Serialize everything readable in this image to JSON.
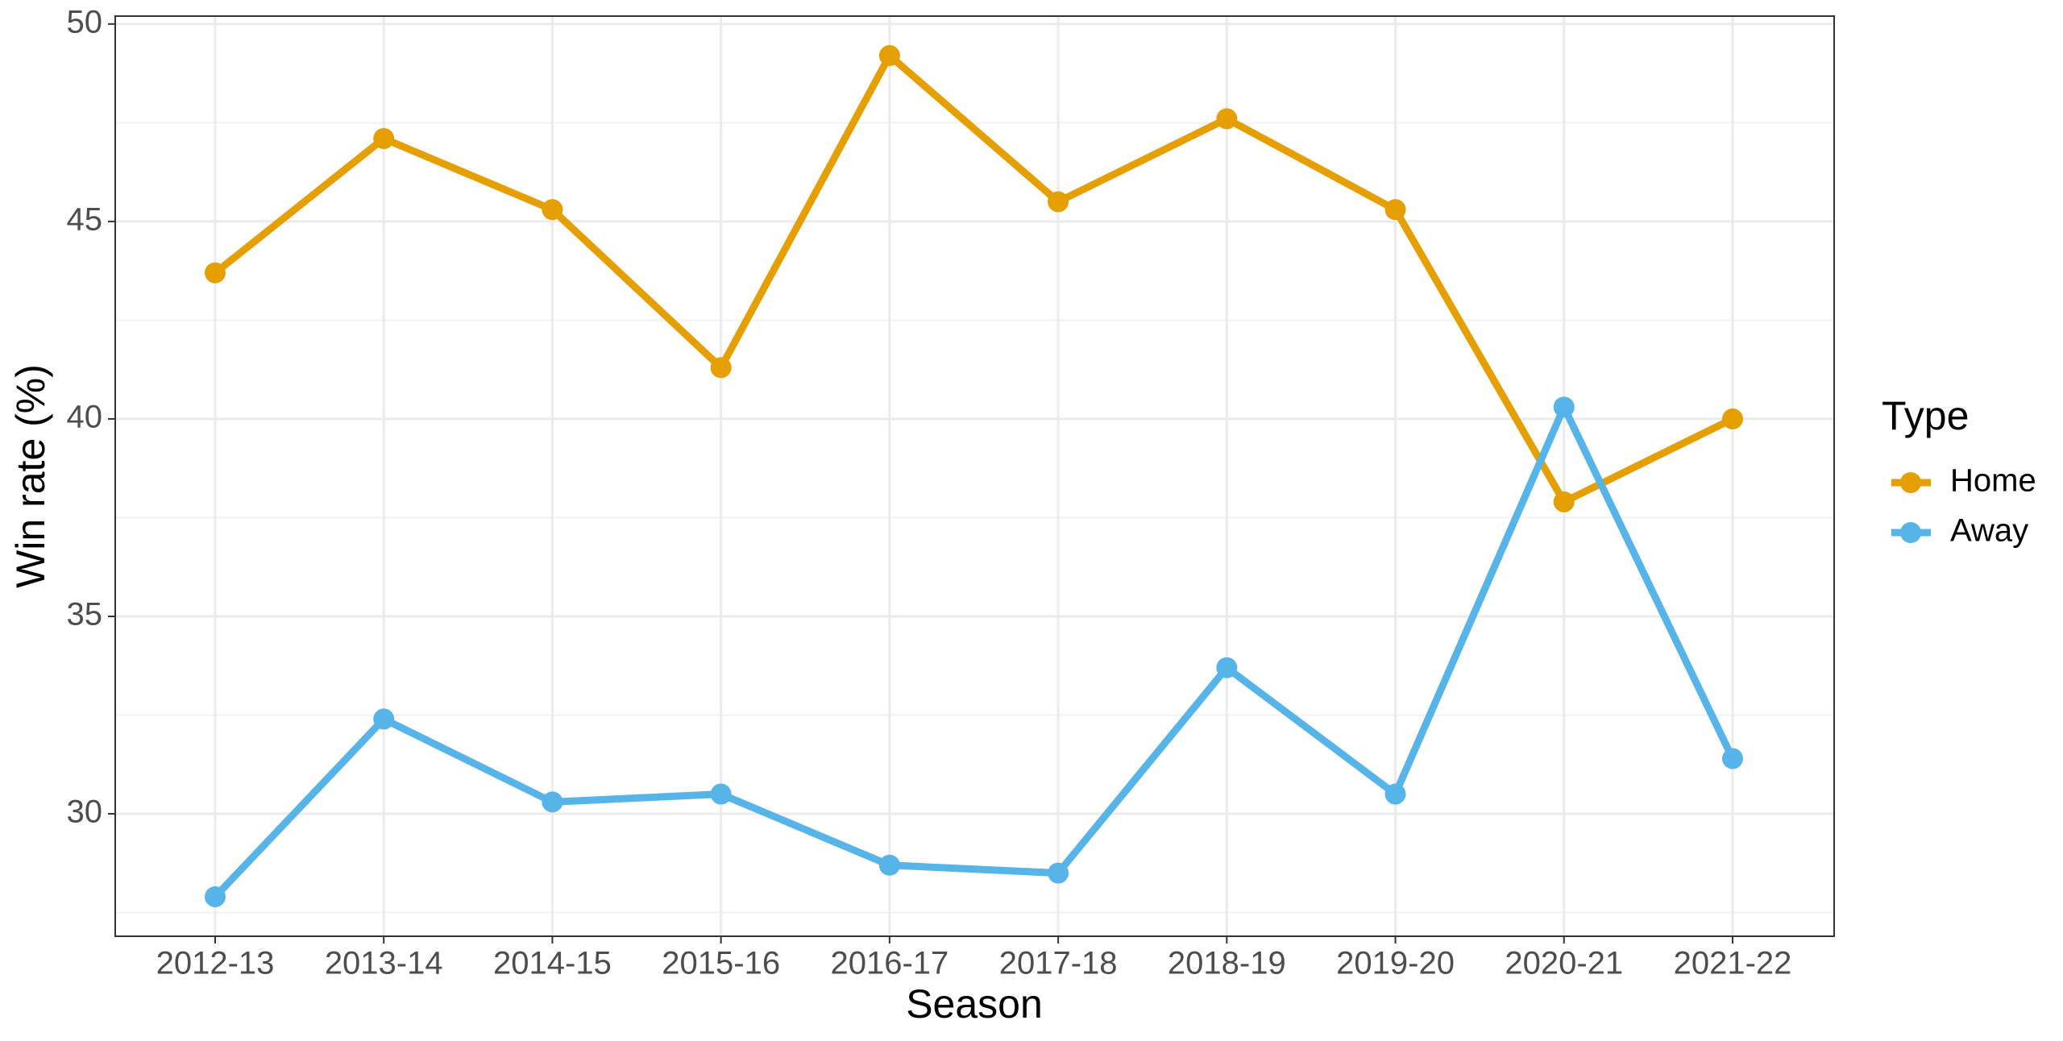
{
  "chart_data": {
    "type": "line",
    "x_label": "Season",
    "y_label": "Win rate (%)",
    "categories": [
      "2012-13",
      "2013-14",
      "2014-15",
      "2015-16",
      "2016-17",
      "2017-18",
      "2018-19",
      "2019-20",
      "2020-21",
      "2021-22"
    ],
    "series": [
      {
        "name": "Home",
        "color": "#e69f00",
        "values": [
          43.7,
          47.1,
          45.3,
          41.3,
          49.2,
          45.5,
          47.6,
          45.3,
          37.9,
          40.0
        ]
      },
      {
        "name": "Away",
        "color": "#56b4e9",
        "values": [
          27.9,
          32.4,
          30.3,
          30.5,
          28.7,
          28.5,
          33.7,
          30.5,
          40.3,
          31.4
        ]
      }
    ],
    "ylim": [
      26.9,
      50.2
    ],
    "yticks": [
      30,
      35,
      40,
      45,
      50
    ],
    "grid": true,
    "legend_title": "Type",
    "legend": "right"
  }
}
